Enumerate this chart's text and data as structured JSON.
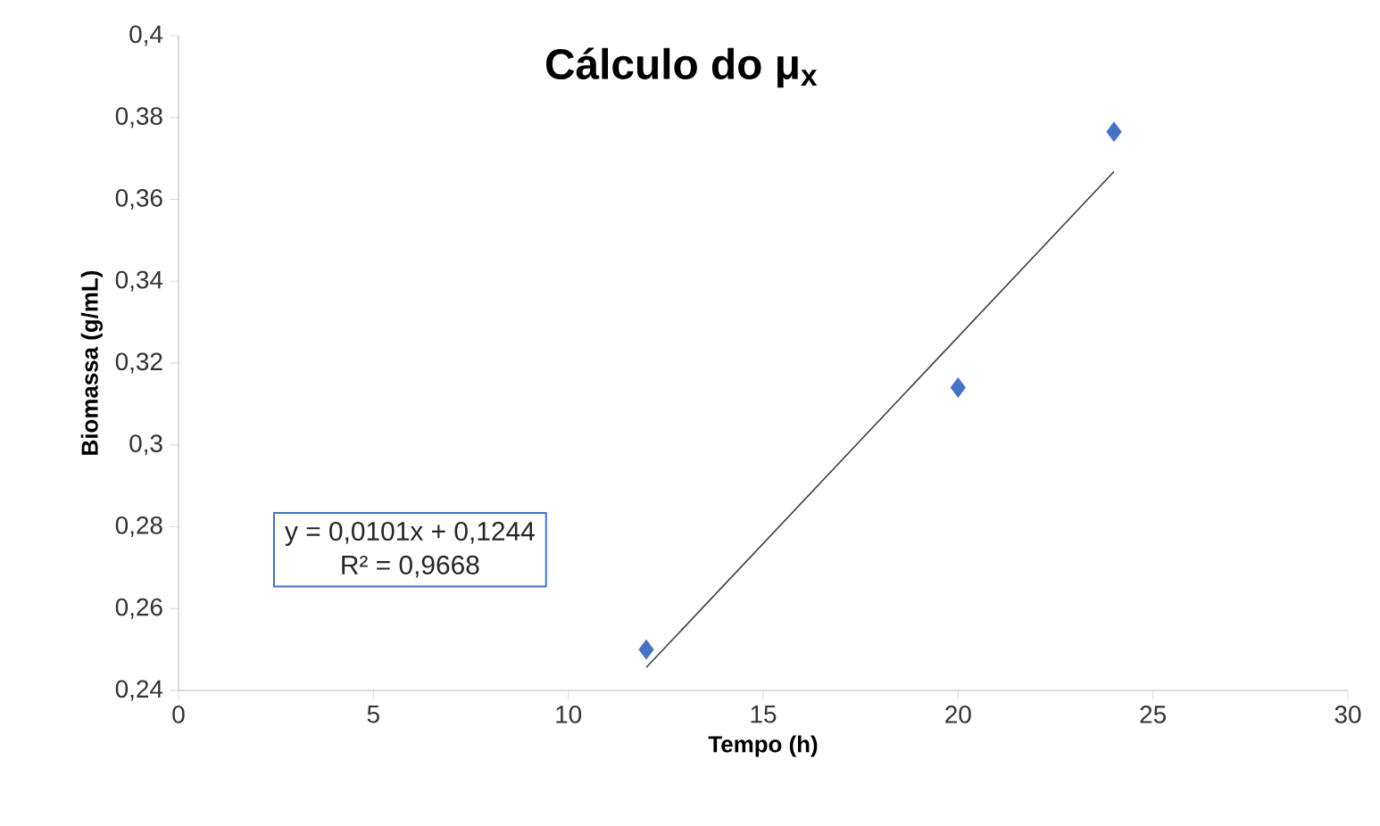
{
  "chart_data": {
    "type": "scatter",
    "title": "Cálculo do μ$_{x}$",
    "xlabel": "Tempo (h)",
    "ylabel": "Biomassa (g/mL)",
    "annotations": [
      "y = 0,0101x + 0,1244",
      "R² = 0,9668"
    ],
    "series": [
      {
        "color": "#4472c4",
        "x": [
          12,
          20,
          24
        ],
        "values": [
          0.25,
          0.314,
          0.3765
        ]
      },
      {
        "type": "line",
        "color": "#404040",
        "marker": "none",
        "x": [
          12,
          24
        ],
        "values": [
          0.2456,
          0.3668
        ]
      }
    ],
    "marker": "diamond",
    "grid": false,
    "xlim": [
      0,
      30
    ],
    "xticks": [
      0,
      5,
      10,
      15,
      20,
      25,
      30
    ],
    "ylim": [
      0.24,
      0.4
    ],
    "yticks": [
      {
        "value": 0.24,
        "label": "0,24"
      },
      {
        "value": 0.26,
        "label": "0,26"
      },
      {
        "value": 0.28,
        "label": "0,28"
      },
      {
        "value": 0.3,
        "label": "0,3"
      },
      {
        "value": 0.32,
        "label": "0,32"
      },
      {
        "value": 0.34,
        "label": "0,34"
      },
      {
        "value": 0.36,
        "label": "0,36"
      },
      {
        "value": 0.38,
        "label": "0,38"
      },
      {
        "value": 0.4,
        "label": "0,4"
      }
    ]
  }
}
